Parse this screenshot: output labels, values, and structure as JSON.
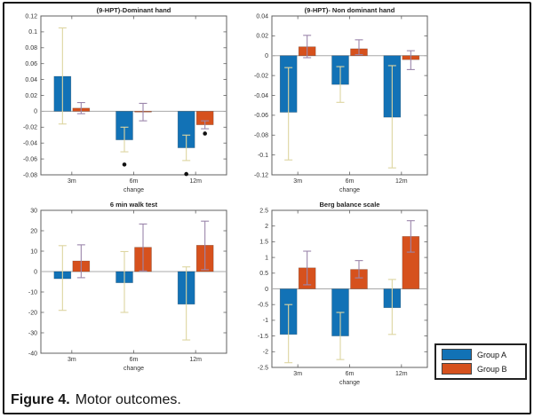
{
  "page": {
    "caption_label": "Figure 4.",
    "caption_text": "Motor outcomes."
  },
  "legend": {
    "position": "bottom-right",
    "items": [
      {
        "label": "Group A",
        "color": "#1272b6"
      },
      {
        "label": "Group B",
        "color": "#d6511d"
      }
    ]
  },
  "colors": {
    "group_a": "#1272b6",
    "group_b": "#d6511d",
    "error_bar_group_a": "#ddd5a0",
    "error_bar_group_b": "#9b86ab",
    "significance_dot": "#111111",
    "zero_line": "#a8a8a8",
    "axis": "#606060"
  },
  "chart_data": [
    {
      "type": "bar",
      "title": "(9-HPT)-Dominant hand",
      "xlabel": "change",
      "categories": [
        "3m",
        "6m",
        "12m"
      ],
      "ylim": [
        -0.08,
        0.12
      ],
      "grid": false,
      "ytick_values": [
        0.12,
        0.1,
        0.08,
        0.06,
        0.04,
        0.02,
        0,
        -0.02,
        -0.04,
        -0.06,
        -0.08
      ],
      "ytick_labels": [
        "0.12",
        "0.1",
        "0.08",
        "0.06",
        "0.04",
        "0.02",
        "0",
        "-0.02",
        "-0.04",
        "-0.06",
        "-0.08"
      ],
      "series": [
        {
          "name": "Group A",
          "color": "#1272b6",
          "err_color": "#ddd5a0",
          "values": [
            0.044,
            -0.036,
            -0.046
          ],
          "err_lo": [
            -0.016,
            -0.051,
            -0.062
          ],
          "err_hi": [
            0.105,
            -0.02,
            -0.03
          ]
        },
        {
          "name": "Group B",
          "color": "#d6511d",
          "err_color": "#9b86ab",
          "values": [
            0.004,
            -0.001,
            -0.017
          ],
          "err_lo": [
            -0.003,
            -0.012,
            -0.022
          ],
          "err_hi": [
            0.011,
            0.01,
            -0.012
          ]
        }
      ],
      "dots": [
        {
          "category_index": 1,
          "series_index": 0,
          "y": -0.067
        },
        {
          "category_index": 2,
          "series_index": 0,
          "y": -0.079
        },
        {
          "category_index": 2,
          "series_index": 1,
          "y": -0.028
        }
      ]
    },
    {
      "type": "bar",
      "title": "(9-HPT)- Non dominant hand",
      "xlabel": "change",
      "categories": [
        "3m",
        "6m",
        "12m"
      ],
      "ylim": [
        -0.12,
        0.04
      ],
      "grid": false,
      "ytick_values": [
        0.04,
        0.02,
        0,
        -0.02,
        -0.04,
        -0.06,
        -0.08,
        -0.1,
        -0.12
      ],
      "ytick_labels": [
        "0.04",
        "0.02",
        "0",
        "-0.02",
        "-0.04",
        "-0.06",
        "-0.08",
        "-0.1",
        "-0.12"
      ],
      "series": [
        {
          "name": "Group A",
          "color": "#1272b6",
          "err_color": "#ddd5a0",
          "values": [
            -0.057,
            -0.029,
            -0.062
          ],
          "err_lo": [
            -0.105,
            -0.047,
            -0.113
          ],
          "err_hi": [
            -0.012,
            -0.011,
            -0.01
          ]
        },
        {
          "name": "Group B",
          "color": "#d6511d",
          "err_color": "#9b86ab",
          "values": [
            0.009,
            0.007,
            -0.004
          ],
          "err_lo": [
            -0.002,
            0.001,
            -0.014
          ],
          "err_hi": [
            0.0205,
            0.016,
            0.005
          ]
        }
      ],
      "dots": []
    },
    {
      "type": "bar",
      "title": "6 min walk test",
      "xlabel": "change",
      "categories": [
        "3m",
        "6m",
        "12m"
      ],
      "ylim": [
        -40,
        30
      ],
      "grid": false,
      "ytick_values": [
        30,
        20,
        10,
        0,
        -10,
        -20,
        -30,
        -40
      ],
      "ytick_labels": [
        "30",
        "20",
        "10",
        "0",
        "-10",
        "-20",
        "-30",
        "-40"
      ],
      "series": [
        {
          "name": "Group A",
          "color": "#1272b6",
          "err_color": "#ddd5a0",
          "values": [
            -3.5,
            -5.5,
            -16
          ],
          "err_lo": [
            -19,
            -20,
            -33.5
          ],
          "err_hi": [
            12.7,
            9.8,
            2.3
          ]
        },
        {
          "name": "Group B",
          "color": "#d6511d",
          "err_color": "#9b86ab",
          "values": [
            5.2,
            11.9,
            12.9
          ],
          "err_lo": [
            -3,
            0.3,
            0.9
          ],
          "err_hi": [
            13.1,
            23.3,
            24.7
          ]
        }
      ],
      "dots": []
    },
    {
      "type": "bar",
      "title": "Berg balance scale",
      "xlabel": "change",
      "categories": [
        "3m",
        "6m",
        "12m"
      ],
      "ylim": [
        -2.5,
        2.5
      ],
      "grid": false,
      "ytick_values": [
        2.5,
        2,
        1.5,
        1,
        0.5,
        0,
        -0.5,
        -1,
        -1.5,
        -2,
        -2.5
      ],
      "ytick_labels": [
        "2.5",
        "2",
        "1.5",
        "1",
        "0.5",
        "0",
        "-0.5",
        "-1",
        "-1.5",
        "-2",
        "-2.5"
      ],
      "series": [
        {
          "name": "Group A",
          "color": "#1272b6",
          "err_color": "#ddd5a0",
          "values": [
            -1.45,
            -1.5,
            -0.6
          ],
          "err_lo": [
            -2.35,
            -2.25,
            -1.45
          ],
          "err_hi": [
            -0.5,
            -0.75,
            0.3
          ]
        },
        {
          "name": "Group B",
          "color": "#d6511d",
          "err_color": "#9b86ab",
          "values": [
            0.67,
            0.62,
            1.67
          ],
          "err_lo": [
            0.13,
            0.35,
            1.17
          ],
          "err_hi": [
            1.2,
            0.9,
            2.17
          ]
        }
      ],
      "dots": []
    }
  ]
}
